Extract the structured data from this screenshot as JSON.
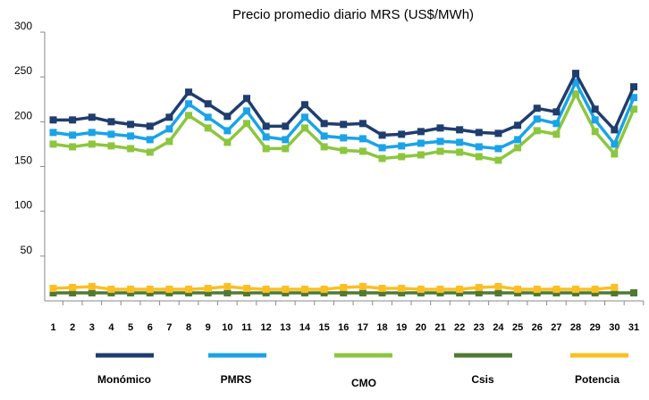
{
  "chart_data": {
    "type": "line",
    "title": "Precio promedio diario MRS (US$/MWh)",
    "xlabel": "",
    "ylabel": "",
    "ylim": [
      0,
      300
    ],
    "yticks": [
      50,
      100,
      150,
      200,
      250,
      300
    ],
    "grid": false,
    "legend_position": "bottom",
    "categories": [
      "1",
      "2",
      "3",
      "4",
      "5",
      "6",
      "7",
      "8",
      "9",
      "10",
      "11",
      "12",
      "13",
      "14",
      "15",
      "16",
      "17",
      "18",
      "19",
      "20",
      "21",
      "22",
      "23",
      "24",
      "25",
      "26",
      "27",
      "28",
      "29",
      "30",
      "31"
    ],
    "series": [
      {
        "name": "Monómico",
        "color": "#1f3d6e",
        "values": [
          202,
          202,
          205,
          200,
          197,
          195,
          205,
          233,
          220,
          206,
          226,
          195,
          195,
          219,
          198,
          197,
          198,
          185,
          186,
          189,
          193,
          191,
          188,
          187,
          196,
          215,
          211,
          254,
          214,
          191,
          239
        ]
      },
      {
        "name": "PMRS",
        "color": "#1aa3e8",
        "values": [
          188,
          185,
          188,
          186,
          184,
          180,
          192,
          220,
          205,
          190,
          212,
          183,
          180,
          205,
          184,
          182,
          181,
          171,
          173,
          176,
          178,
          177,
          172,
          170,
          180,
          203,
          198,
          244,
          202,
          175,
          227
        ]
      },
      {
        "name": "CMO",
        "color": "#8cc63f",
        "values": [
          175,
          172,
          175,
          173,
          170,
          166,
          178,
          207,
          193,
          177,
          198,
          170,
          170,
          193,
          172,
          168,
          167,
          159,
          161,
          163,
          167,
          166,
          161,
          157,
          171,
          190,
          186,
          231,
          189,
          164,
          214
        ]
      },
      {
        "name": "Csis",
        "color": "#4f7a34",
        "values": [
          9,
          9,
          9,
          9,
          9,
          9,
          9,
          9,
          9,
          9,
          9,
          9,
          9,
          9,
          9,
          9,
          9,
          9,
          9,
          9,
          9,
          9,
          9,
          9,
          9,
          9,
          9,
          9,
          9,
          9,
          9
        ]
      },
      {
        "name": "Potencia",
        "color": "#fbbf24",
        "values": [
          14,
          15,
          16,
          13,
          13,
          13,
          13,
          13,
          14,
          16,
          14,
          13,
          13,
          13,
          13,
          15,
          16,
          14,
          14,
          13,
          13,
          13,
          15,
          16,
          13,
          13,
          13,
          13,
          13,
          15,
          null
        ]
      }
    ]
  }
}
